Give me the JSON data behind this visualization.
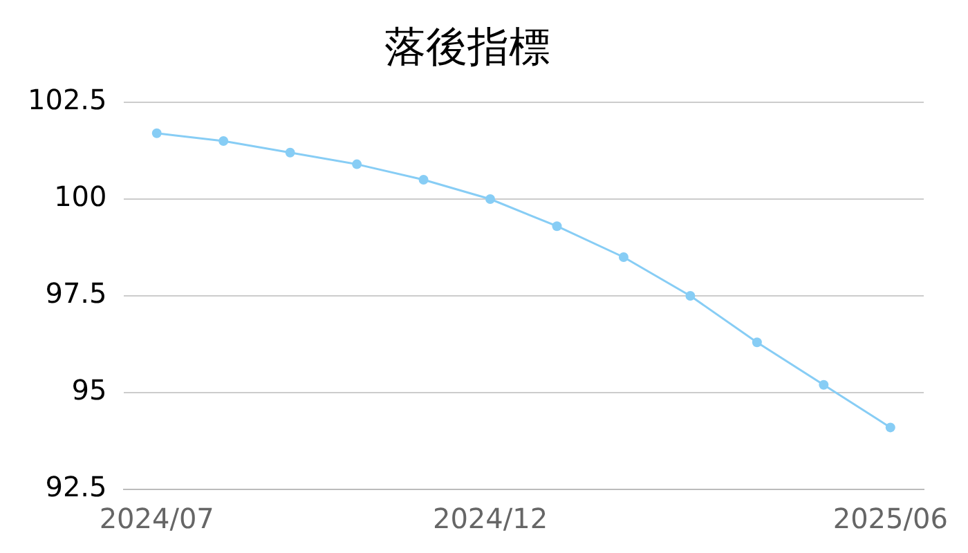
{
  "chart_data": {
    "type": "line",
    "title": "落後指標",
    "categories": [
      "2024/07",
      null,
      null,
      null,
      null,
      "2024/12",
      null,
      null,
      null,
      null,
      null,
      "2025/06"
    ],
    "series": [
      {
        "color": "#87cdf5",
        "values": [
          101.7,
          101.5,
          101.2,
          100.9,
          100.5,
          100.0,
          99.3,
          98.5,
          97.5,
          96.3,
          95.2,
          94.1
        ]
      }
    ],
    "ylim": [
      92.5,
      102.5
    ],
    "yticks": [
      92.5,
      95,
      97.5,
      100,
      102.5
    ],
    "grid": "y",
    "legend": false,
    "marker": "circle",
    "line_style": "solid"
  }
}
